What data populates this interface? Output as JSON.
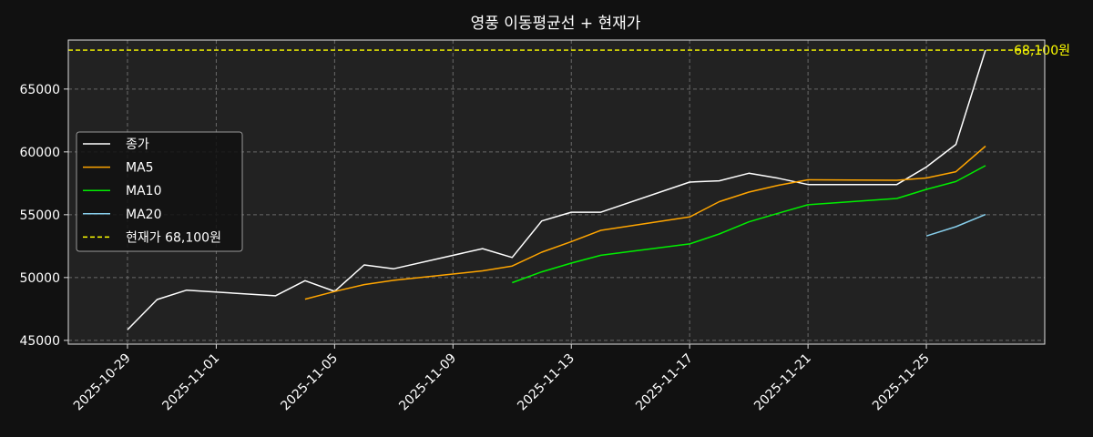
{
  "chart_data": {
    "type": "line",
    "title": "영풍 이동평균선 + 현재가",
    "xlabel": "",
    "ylabel": "",
    "x_ticks": [
      "2025-10-29",
      "2025-11-01",
      "2025-11-05",
      "2025-11-09",
      "2025-11-13",
      "2025-11-17",
      "2025-11-21",
      "2025-11-25"
    ],
    "y_ticks": [
      45000,
      50000,
      55000,
      60000,
      65000
    ],
    "xlim": [
      "2025-10-27",
      "2025-11-29"
    ],
    "ylim": [
      44700,
      68900
    ],
    "grid": true,
    "legend_position": "center-left",
    "x": [
      "2025-10-29",
      "2025-10-30",
      "2025-10-31",
      "2025-11-03",
      "2025-11-04",
      "2025-11-05",
      "2025-11-06",
      "2025-11-07",
      "2025-11-10",
      "2025-11-11",
      "2025-11-12",
      "2025-11-13",
      "2025-11-14",
      "2025-11-17",
      "2025-11-18",
      "2025-11-19",
      "2025-11-20",
      "2025-11-21",
      "2025-11-24",
      "2025-11-25",
      "2025-11-26",
      "2025-11-27"
    ],
    "series": [
      {
        "name": "종가",
        "color": "#ffffff",
        "values": [
          45850,
          48250,
          49000,
          48550,
          49750,
          48900,
          51000,
          50700,
          52300,
          51600,
          54500,
          55200,
          55200,
          57600,
          57700,
          58300,
          57900,
          57400,
          57400,
          58800,
          60600,
          68100
        ]
      },
      {
        "name": "MA5",
        "color": "#ffa500",
        "values": [
          null,
          null,
          null,
          null,
          48280,
          48890,
          49440,
          49780,
          50530,
          50920,
          52020,
          52860,
          53760,
          54820,
          56040,
          56800,
          57340,
          57780,
          57740,
          57920,
          58420,
          60460
        ]
      },
      {
        "name": "MA10",
        "color": "#00ee00",
        "values": [
          null,
          null,
          null,
          null,
          null,
          null,
          null,
          null,
          null,
          49590,
          50455,
          51150,
          51770,
          52675,
          53470,
          54430,
          55120,
          55790,
          56290,
          57020,
          57640,
          58910
        ]
      },
      {
        "name": "MA20",
        "color": "#87ceeb",
        "values": [
          null,
          null,
          null,
          null,
          null,
          null,
          null,
          null,
          null,
          null,
          null,
          null,
          null,
          null,
          null,
          null,
          null,
          null,
          null,
          53305,
          54045,
          55015
        ]
      }
    ],
    "current_price": {
      "value": 68100,
      "label": "68,100원",
      "legend": "현재가 68,100원",
      "color": "#ffff00"
    }
  }
}
